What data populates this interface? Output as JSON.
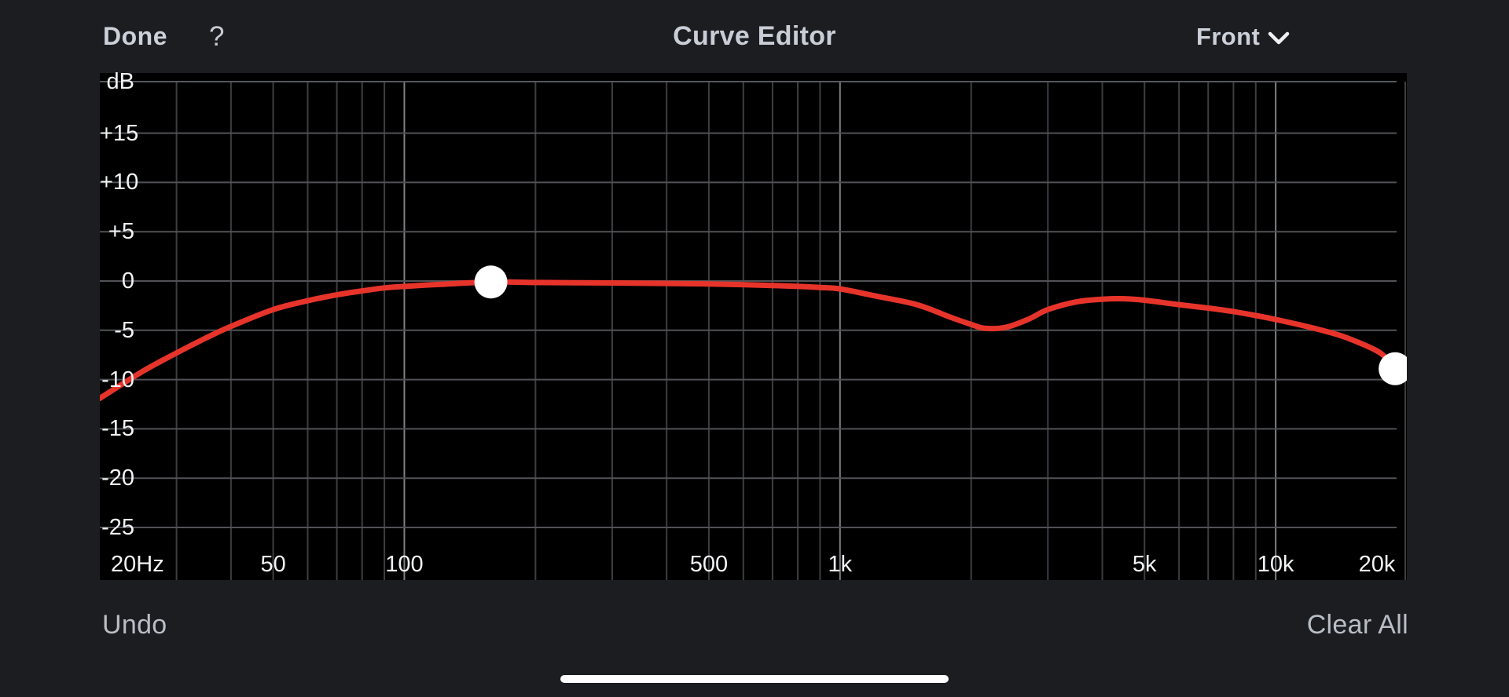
{
  "header": {
    "done_label": "Done",
    "help_label": "?",
    "title": "Curve Editor",
    "output_selected": "Front"
  },
  "footer": {
    "undo_label": "Undo",
    "clear_all_label": "Clear All"
  },
  "colors": {
    "chrome_bg": "#1b1d21",
    "plot_bg": "#000000",
    "grid_horizontal": "#505256",
    "grid_minor": "#3c3e42",
    "grid_major": "#7d7f83",
    "grid_top_border": "#55575b",
    "axis_label": "#f2f3f5",
    "curve_red": "#e7342b",
    "handle_white": "#ffffff",
    "header_text": "#ccd1d9",
    "chevron": "#eef0f3",
    "footer_text": "#b9bec6",
    "home_indicator": "#ffffff"
  },
  "chart_data": {
    "type": "line",
    "title": "Frequency response curve (Front)",
    "x_axis": {
      "scale": "log",
      "unit": "Hz",
      "min_hz": 20,
      "max_hz": 20000,
      "ticks": [
        {
          "hz": 20,
          "label": "20Hz",
          "anchor": "left"
        },
        {
          "hz": 50,
          "label": "50",
          "anchor": "center"
        },
        {
          "hz": 100,
          "label": "100",
          "anchor": "center"
        },
        {
          "hz": 500,
          "label": "500",
          "anchor": "center"
        },
        {
          "hz": 1000,
          "label": "1k",
          "anchor": "center"
        },
        {
          "hz": 5000,
          "label": "5k",
          "anchor": "center"
        },
        {
          "hz": 10000,
          "label": "10k",
          "anchor": "center"
        },
        {
          "hz": 20000,
          "label": "20k",
          "anchor": "inset-right"
        }
      ]
    },
    "y_axis": {
      "unit": "dB",
      "min": -30,
      "max": 20,
      "gridline_step": 5,
      "labels": [
        {
          "db": 20,
          "label": "dB"
        },
        {
          "db": 15,
          "label": "+15"
        },
        {
          "db": 10,
          "label": "+10"
        },
        {
          "db": 5,
          "label": "+5"
        },
        {
          "db": 0,
          "label": "0"
        },
        {
          "db": -5,
          "label": "-5"
        },
        {
          "db": -10,
          "label": "-10"
        },
        {
          "db": -15,
          "label": "-15"
        },
        {
          "db": -20,
          "label": "-20"
        },
        {
          "db": -25,
          "label": "-25"
        }
      ]
    },
    "grid": {
      "minor_hz": [
        30,
        40,
        50,
        60,
        70,
        80,
        90,
        200,
        300,
        400,
        500,
        600,
        700,
        800,
        900,
        2000,
        3000,
        4000,
        5000,
        6000,
        7000,
        8000,
        9000
      ],
      "major_hz": [
        100,
        1000,
        10000
      ],
      "edge_hz": [
        20000
      ],
      "horizontal_db": [
        15,
        10,
        5,
        0,
        -5,
        -10,
        -15,
        -20,
        -25
      ],
      "top_border_db": 20
    },
    "series": [
      {
        "name": "front-eq-curve",
        "color": "#e7342b",
        "points_hz_db": [
          [
            20,
            -11.9
          ],
          [
            25,
            -9.2
          ],
          [
            30,
            -7.3
          ],
          [
            35,
            -5.8
          ],
          [
            40,
            -4.6
          ],
          [
            50,
            -2.9
          ],
          [
            60,
            -2.0
          ],
          [
            70,
            -1.4
          ],
          [
            80,
            -1.0
          ],
          [
            90,
            -0.7
          ],
          [
            100,
            -0.55
          ],
          [
            120,
            -0.35
          ],
          [
            158,
            -0.1
          ],
          [
            200,
            -0.15
          ],
          [
            300,
            -0.2
          ],
          [
            400,
            -0.25
          ],
          [
            500,
            -0.3
          ],
          [
            700,
            -0.45
          ],
          [
            900,
            -0.65
          ],
          [
            1000,
            -0.8
          ],
          [
            1200,
            -1.5
          ],
          [
            1500,
            -2.4
          ],
          [
            1800,
            -3.7
          ],
          [
            2000,
            -4.4
          ],
          [
            2150,
            -4.8
          ],
          [
            2400,
            -4.7
          ],
          [
            2700,
            -3.9
          ],
          [
            3000,
            -2.9
          ],
          [
            3500,
            -2.1
          ],
          [
            4000,
            -1.85
          ],
          [
            4500,
            -1.8
          ],
          [
            5000,
            -1.95
          ],
          [
            6000,
            -2.4
          ],
          [
            7000,
            -2.75
          ],
          [
            8000,
            -3.1
          ],
          [
            9000,
            -3.5
          ],
          [
            10000,
            -3.9
          ],
          [
            12000,
            -4.7
          ],
          [
            14000,
            -5.5
          ],
          [
            16000,
            -6.5
          ],
          [
            17500,
            -7.4
          ],
          [
            18800,
            -8.9
          ]
        ]
      }
    ],
    "control_points": [
      {
        "hz": 158,
        "db": -0.1
      },
      {
        "hz": 18800,
        "db": -8.9
      }
    ]
  }
}
